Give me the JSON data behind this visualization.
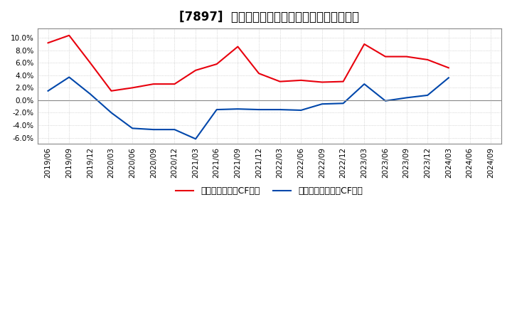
{
  "title": "[7897]  有利子負債キャッシュフロー比率の推移",
  "legend_labels": [
    "有利子負債営業CF比率",
    "有利子負債フリーCF比率"
  ],
  "x_labels": [
    "2019/06",
    "2019/09",
    "2019/12",
    "2020/03",
    "2020/06",
    "2020/09",
    "2020/12",
    "2021/03",
    "2021/06",
    "2021/09",
    "2021/12",
    "2022/03",
    "2022/06",
    "2022/09",
    "2022/12",
    "2023/03",
    "2023/06",
    "2023/09",
    "2023/12",
    "2024/03",
    "2024/06",
    "2024/09"
  ],
  "red_series": [
    0.092,
    0.104,
    0.06,
    0.015,
    0.02,
    0.026,
    0.026,
    0.048,
    0.058,
    0.086,
    0.043,
    0.03,
    0.032,
    0.029,
    0.03,
    0.09,
    0.07,
    0.07,
    0.065,
    0.052,
    null,
    null
  ],
  "blue_series": [
    0.015,
    0.037,
    0.01,
    -0.02,
    -0.045,
    -0.047,
    -0.047,
    -0.062,
    -0.015,
    -0.014,
    -0.015,
    -0.015,
    -0.016,
    -0.006,
    -0.005,
    0.026,
    -0.001,
    0.004,
    0.008,
    0.036,
    null,
    null
  ],
  "ylim": [
    -0.07,
    0.115
  ],
  "yticks": [
    -0.06,
    -0.04,
    -0.02,
    0.0,
    0.02,
    0.04,
    0.06,
    0.08,
    0.1
  ],
  "red_color": "#e8000d",
  "blue_color": "#0047ab",
  "bg_color": "#ffffff",
  "plot_bg_color": "#ffffff",
  "grid_color": "#aaaaaa",
  "title_fontsize": 12,
  "axis_fontsize": 7.5
}
